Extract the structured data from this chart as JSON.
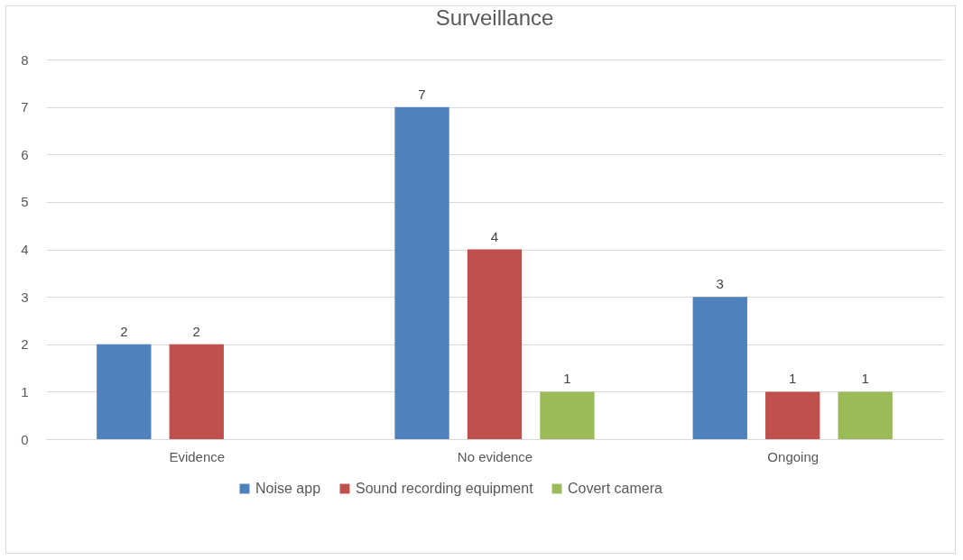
{
  "chart_data": {
    "type": "bar",
    "title": "Surveillance",
    "categories": [
      "Evidence",
      "No evidence",
      "Ongoing"
    ],
    "series": [
      {
        "name": "Noise app",
        "color": "#4f81bd",
        "values": [
          2,
          7,
          3
        ]
      },
      {
        "name": "Sound recording equipment",
        "color": "#c0504d",
        "values": [
          2,
          4,
          1
        ]
      },
      {
        "name": "Covert camera",
        "color": "#9bbb59",
        "values": [
          null,
          1,
          1
        ]
      }
    ],
    "ylim": [
      0,
      8
    ],
    "yticks": [
      0,
      1,
      2,
      3,
      4,
      5,
      6,
      7,
      8
    ],
    "grid": "y",
    "legend": "bottom",
    "data_labels": true
  }
}
